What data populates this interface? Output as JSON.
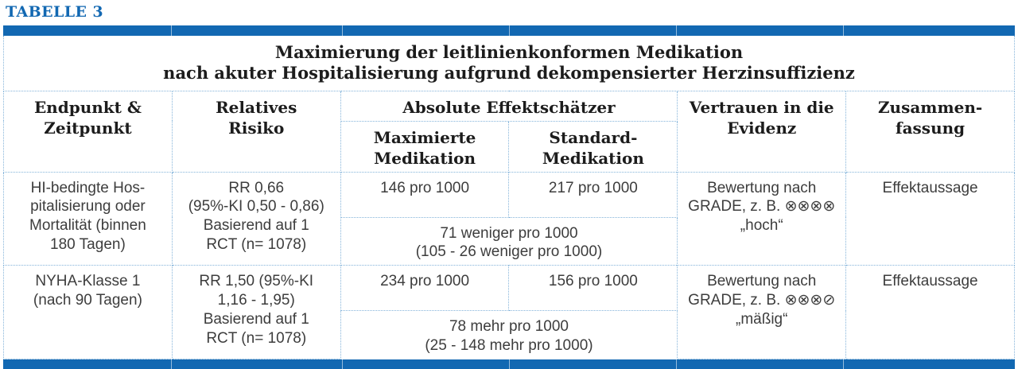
{
  "label": "TABELLE 3",
  "colors": {
    "accent_blue": "#1268b2",
    "dotted_border": "#85b4da",
    "body_text": "#3d3d3d"
  },
  "table": {
    "title": "Maximierung der leitlinienkonformen Medikation\nnach akuter Hospitalisierung aufgrund dekompensierter Herzinsuffizienz",
    "headers": {
      "endpoint": "Endpunkt &\nZeitpunkt",
      "relative_risk": "Relatives\nRisiko",
      "absolute_effects": "Absolute Effektschätzer",
      "maximized": "Maximierte\nMedikation",
      "standard": "Standard-\nMedikation",
      "confidence": "Vertrauen in die\nEvidenz",
      "summary": "Zusammen-\nfassung"
    },
    "rows": [
      {
        "endpoint": "HI-bedingte Hos-\npitalisierung oder\nMortalität (binnen\n180 Tagen)",
        "relative_risk": "RR 0,66\n(95%-KI 0,50 - 0,86)\nBasierend auf 1\nRCT (n= 1078)",
        "maximized": "146 pro 1000",
        "standard": "217 pro 1000",
        "difference": "71 weniger pro 1000\n(105 - 26 weniger pro 1000)",
        "confidence": "Bewertung nach\nGRADE, z. B. ⊗⊗⊗⊗\n„hoch“",
        "summary": "Effektaussage"
      },
      {
        "endpoint": "NYHA-Klasse 1\n(nach 90 Tagen)",
        "relative_risk": "RR 1,50 (95%-KI\n1,16 - 1,95)\nBasierend auf 1\nRCT (n= 1078)",
        "maximized": "234 pro 1000",
        "standard": "156 pro 1000",
        "difference": "78 mehr pro 1000\n(25 - 148 mehr pro 1000)",
        "confidence": "Bewertung nach\nGRADE, z. B. ⊗⊗⊗⊘\n„mäßig“",
        "summary": "Effektaussage"
      }
    ]
  }
}
